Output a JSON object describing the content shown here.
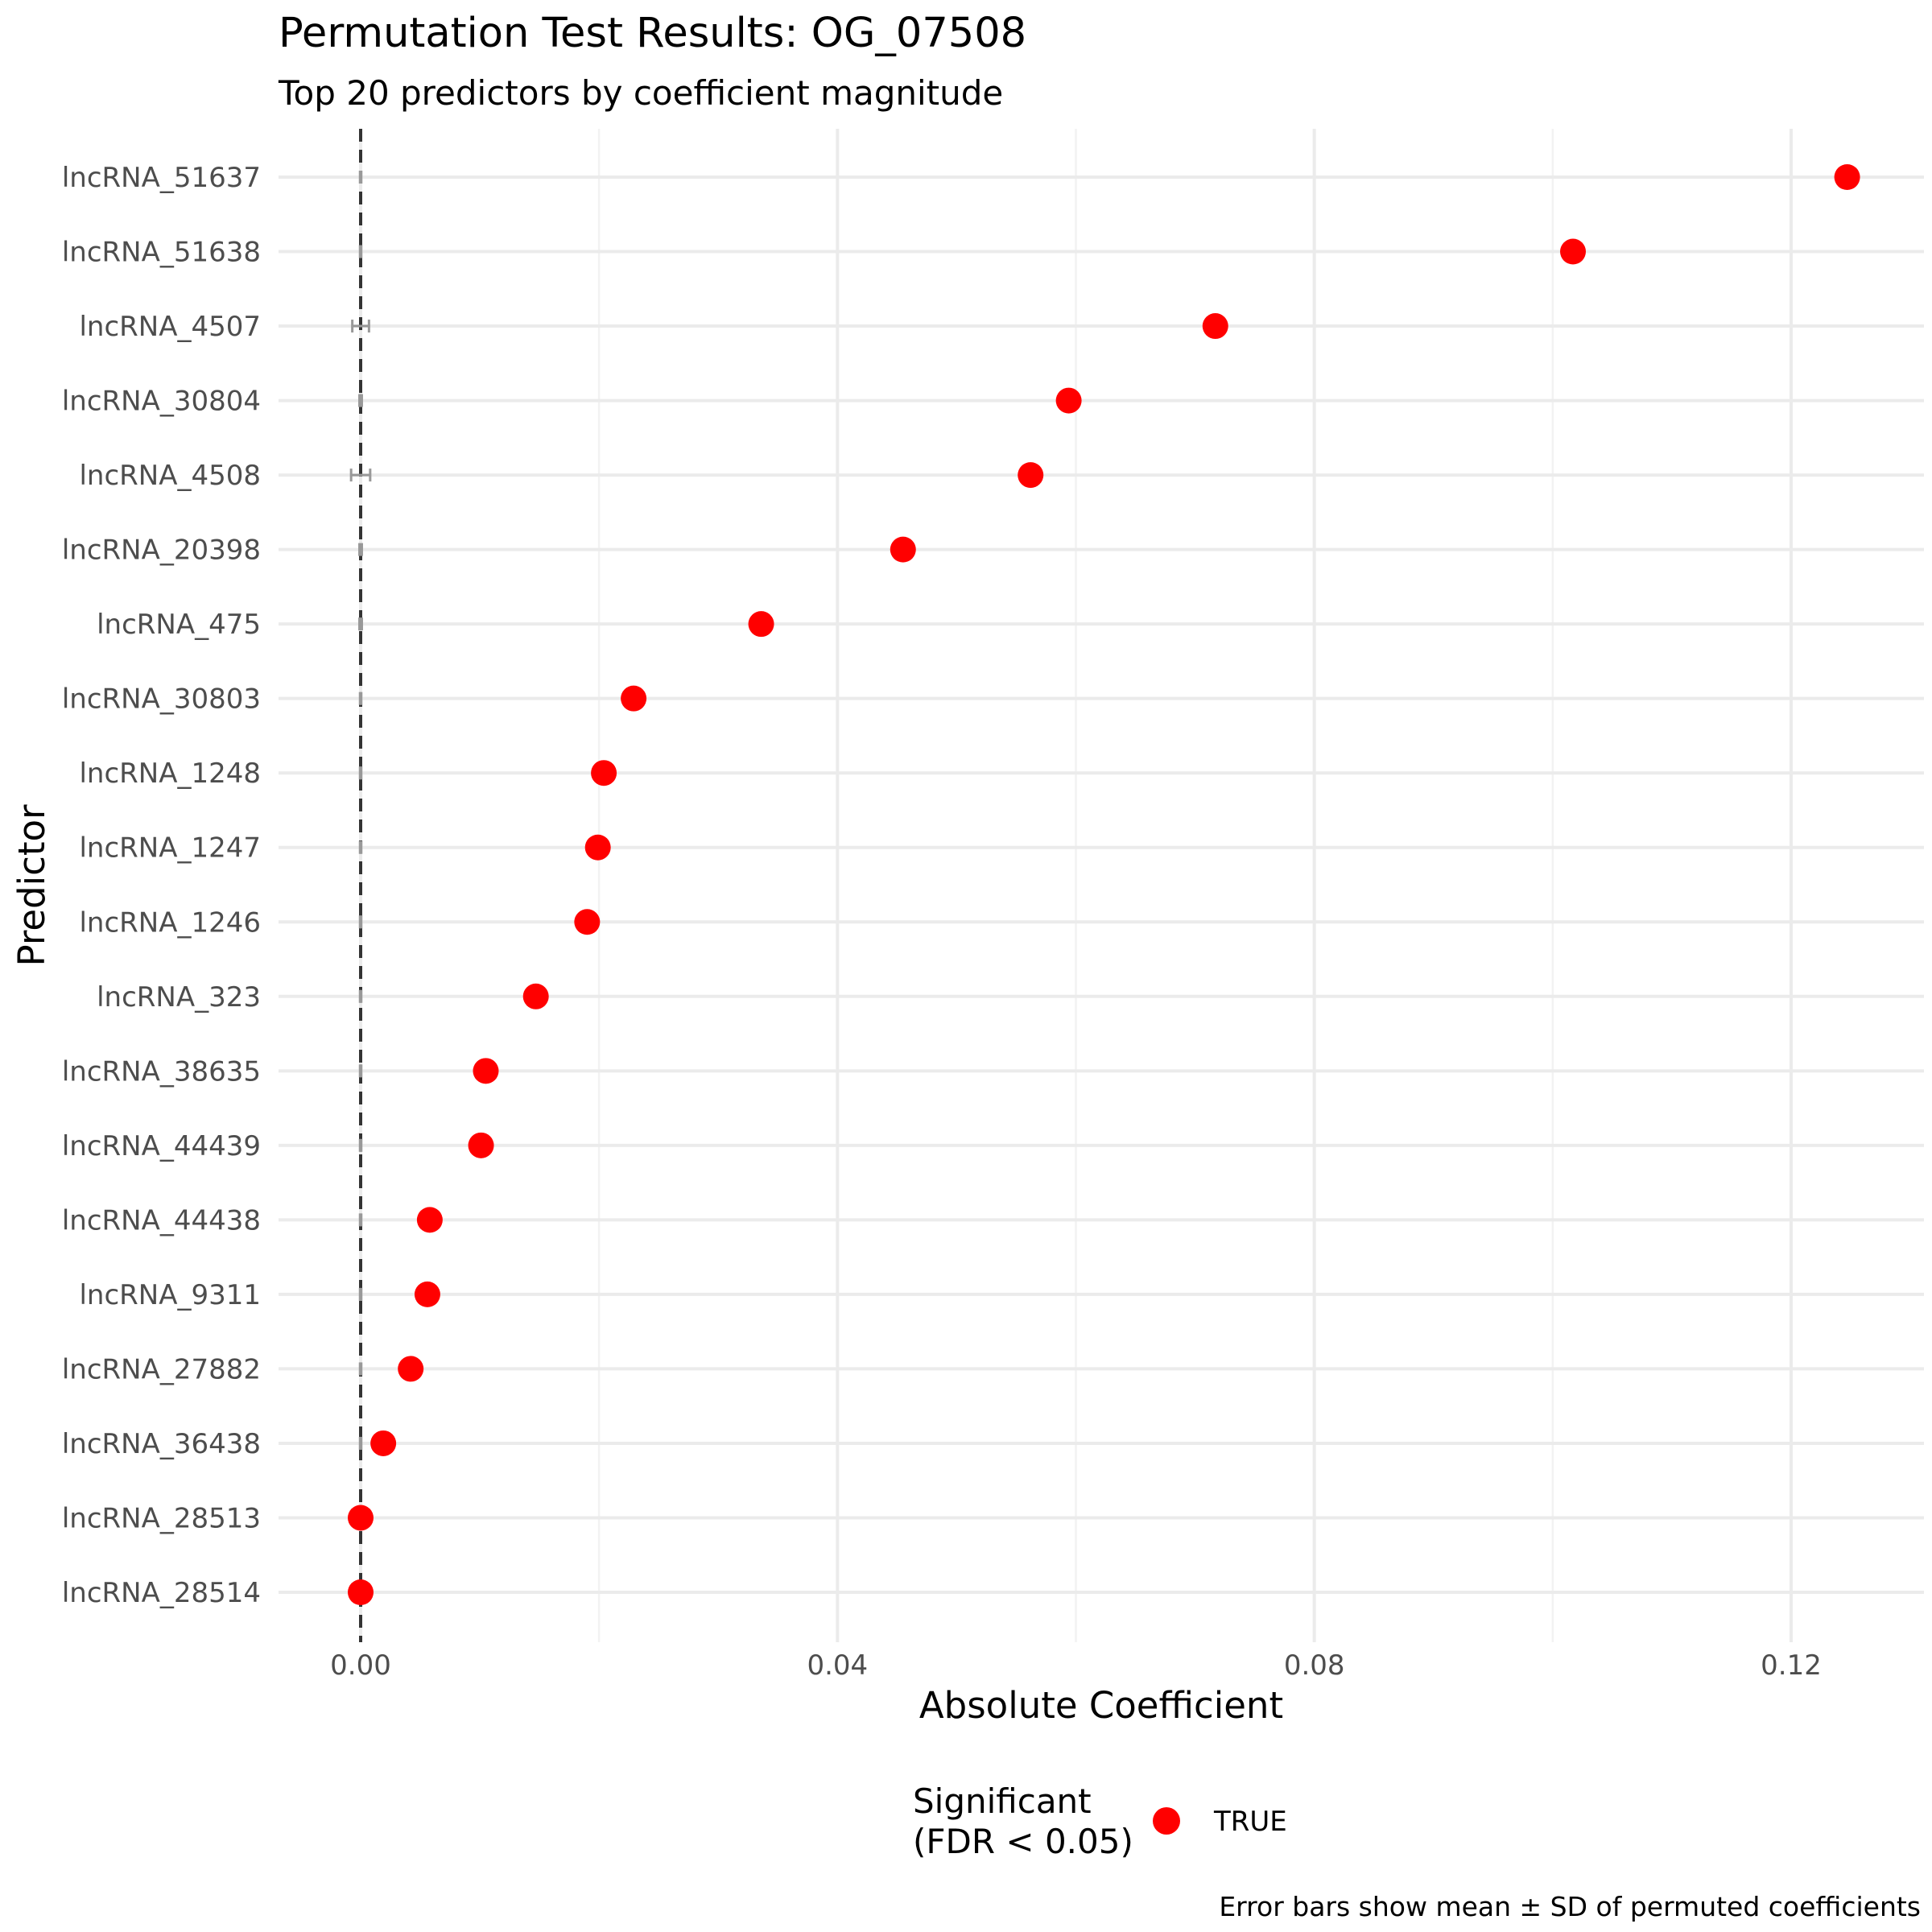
{
  "chart_data": {
    "type": "scatter",
    "title": "Permutation Test Results: OG_07508",
    "subtitle": "Top 20 predictors by coefficient magnitude",
    "xlabel": "Absolute Coefficient",
    "ylabel": "Predictor",
    "xlim": [
      -0.0175,
      0.129
    ],
    "x_ticks": [
      0.0,
      0.04,
      0.08,
      0.12
    ],
    "x_tick_labels": [
      "0.00",
      "0.04",
      "0.08",
      "0.12"
    ],
    "reference_line_x": 0,
    "grid": true,
    "categories": [
      "lncRNA_51637",
      "lncRNA_51638",
      "lncRNA_4507",
      "lncRNA_30804",
      "lncRNA_4508",
      "lncRNA_20398",
      "lncRNA_475",
      "lncRNA_30803",
      "lncRNA_1248",
      "lncRNA_1247",
      "lncRNA_1246",
      "lncRNA_323",
      "lncRNA_38635",
      "lncRNA_44439",
      "lncRNA_44438",
      "lncRNA_9311",
      "lncRNA_27882",
      "lncRNA_36438",
      "lncRNA_28513",
      "lncRNA_28514"
    ],
    "values": [
      0.1247,
      0.1017,
      0.0717,
      0.0594,
      0.0562,
      0.0455,
      0.0336,
      0.0229,
      0.0204,
      0.0199,
      0.019,
      0.0147,
      0.0105,
      0.0101,
      0.0058,
      0.0056,
      0.0042,
      0.0019,
      0.0,
      0.0
    ],
    "perm_mean": [
      0,
      0,
      0,
      0,
      0,
      0,
      0,
      0,
      0,
      0,
      0,
      0,
      0,
      0,
      0,
      0,
      0,
      0,
      0,
      0
    ],
    "perm_sd": [
      5e-05,
      5e-05,
      0.0007,
      0.0001,
      0.0008,
      0.0001,
      0.0001,
      5e-05,
      5e-05,
      5e-05,
      5e-05,
      5e-05,
      5e-05,
      5e-05,
      5e-05,
      5e-05,
      5e-05,
      5e-05,
      5e-05,
      5e-05
    ],
    "significant": [
      true,
      true,
      true,
      true,
      true,
      true,
      true,
      true,
      true,
      true,
      true,
      true,
      true,
      true,
      true,
      true,
      true,
      true,
      true,
      true
    ],
    "legend": {
      "title_line1": "Significant",
      "title_line2": "(FDR < 0.05)",
      "entries": [
        "TRUE"
      ],
      "color": "#ff0000",
      "position": "bottom"
    },
    "caption": "Error bars show mean ± SD of permuted coefficients"
  }
}
